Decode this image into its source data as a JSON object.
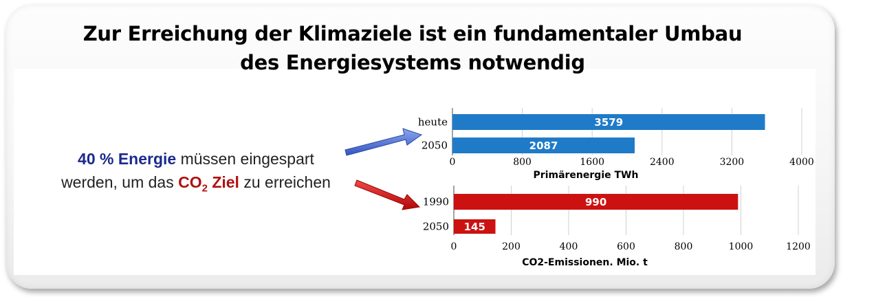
{
  "title": {
    "line1": "Zur Erreichung der Klimaziele ist ein fundamentaler Umbau",
    "line2": "des Energiesystems notwendig"
  },
  "message": {
    "part1": "40 % Energie",
    "part2": " müssen eingespart",
    "part3": "werden, um das ",
    "part4": "CO",
    "part5": "2",
    "part6": " Ziel",
    "part7": " zu erreichen"
  },
  "colors": {
    "blue_bar": "#1f7bc8",
    "red_bar": "#cc1111",
    "blue_arrow": "#4a6fd0",
    "red_arrow": "#d41414"
  },
  "chart_data": [
    {
      "type": "bar",
      "orientation": "horizontal",
      "categories": [
        "heute",
        "2050"
      ],
      "values": [
        3579,
        2087
      ],
      "xlabel": "Primärenergie TWh",
      "xlim": [
        0,
        4000
      ],
      "ticks": [
        0,
        800,
        1600,
        2400,
        3200,
        4000
      ],
      "grid": true,
      "color": "#1f7bc8"
    },
    {
      "type": "bar",
      "orientation": "horizontal",
      "categories": [
        "1990",
        "2050"
      ],
      "values": [
        990,
        145
      ],
      "xlabel": "CO2-Emissionen. Mio. t",
      "xlim": [
        0,
        1200
      ],
      "ticks": [
        0,
        200,
        400,
        600,
        800,
        1000,
        1200
      ],
      "grid": true,
      "color": "#cc1111"
    }
  ]
}
